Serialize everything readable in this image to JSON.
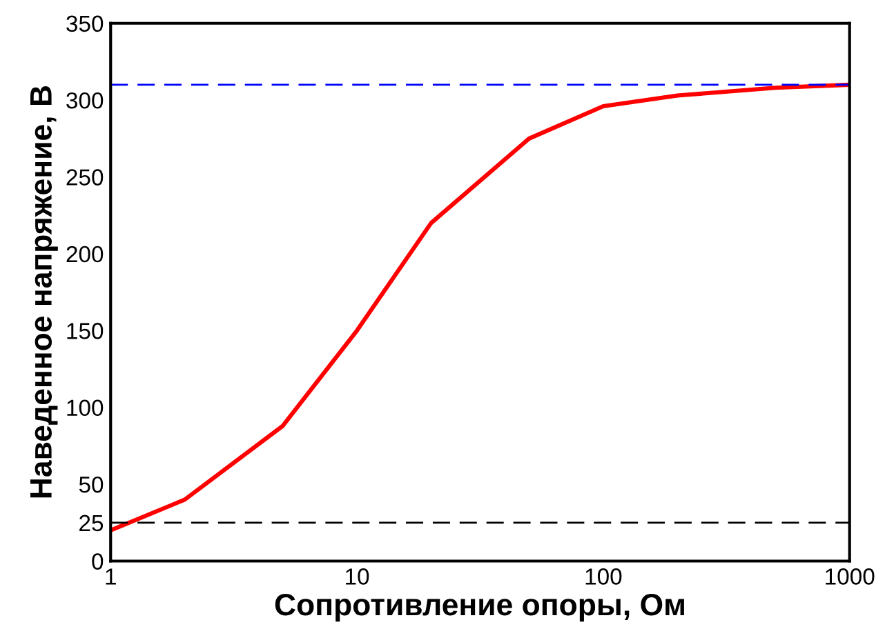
{
  "chart_data": {
    "type": "line",
    "xlabel": "Сопротивление опоры, Ом",
    "ylabel": "Наведенное напряжение, В",
    "x": [
      1,
      2,
      5,
      10,
      20,
      50,
      100,
      200,
      500,
      1000
    ],
    "series": [
      {
        "color": "#ff0000",
        "values": [
          20,
          40,
          88,
          150,
          220,
          275,
          296,
          303,
          308,
          310
        ]
      }
    ],
    "log": "x",
    "xlim": [
      1,
      1000
    ],
    "xticks": [
      1,
      10,
      100,
      1000
    ],
    "ylim": [
      0,
      350
    ],
    "yticks": [
      0,
      25,
      50,
      100,
      150,
      200,
      250,
      300,
      350
    ],
    "grid": false,
    "legend": false,
    "marker": "none",
    "line_style": "solid",
    "ref_lines": [
      {
        "axis": "y",
        "value": 310,
        "color": "#0000ff",
        "line_style": "dashed"
      },
      {
        "axis": "y",
        "value": 25,
        "color": "#000000",
        "line_style": "dashed"
      }
    ]
  }
}
